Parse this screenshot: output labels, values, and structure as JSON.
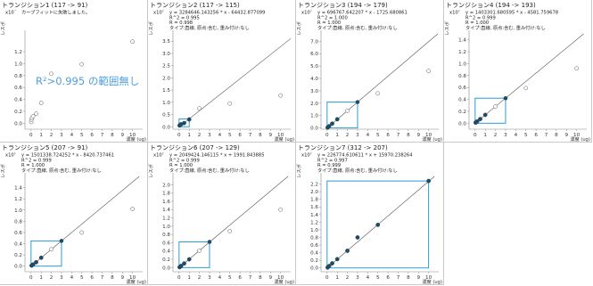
{
  "chart_data": [
    {
      "type": "scatter",
      "title": "トランジション1 (117 -> 91)",
      "exp": "x10´",
      "info": [
        "カーブフィットに失敗しました。"
      ],
      "note": "R²>0.995 の範囲無し",
      "ylabel": "レスポ",
      "xlabel": "濃度 (ug)",
      "xlim": [
        -0.6,
        11
      ],
      "ylim": [
        -0.1,
        1.5
      ],
      "xticks": [
        0,
        1,
        2,
        3,
        4,
        5,
        6,
        7,
        8,
        9,
        10
      ],
      "yticks": [
        "0.0",
        "0.2",
        "0.4",
        "0.6",
        "0.8",
        "1.0",
        "1.2"
      ],
      "points": [
        [
          0.02,
          0.02
        ],
        [
          0.05,
          0.06
        ],
        [
          0.1,
          0.09
        ],
        [
          0.2,
          0.12
        ],
        [
          0.5,
          0.16
        ],
        [
          1,
          0.34
        ],
        [
          2,
          0.83
        ],
        [
          5,
          0.99
        ],
        [
          10,
          1.37
        ]
      ],
      "highlight": [],
      "fit_line": null,
      "box": null
    },
    {
      "type": "scatter",
      "title": "トランジション2 (117 -> 115)",
      "exp": "x10⁷",
      "info": [
        "y = 3284646.143256 * x - 64432.877099",
        "R^2 = 0.995",
        "R = 0.998",
        "タイプ:直線, 原点:含む, 重み付け:なし"
      ],
      "note": "",
      "ylabel": "レスポ",
      "xlabel": "濃度 (ug)",
      "xlim": [
        -0.6,
        11
      ],
      "ylim": [
        -0.1,
        3.8
      ],
      "xticks": [
        0,
        1,
        2,
        3,
        4,
        5,
        6,
        7,
        8,
        9,
        10
      ],
      "yticks": [
        "0.0",
        "0.5",
        "1.0",
        "1.5",
        "2.0",
        "2.5",
        "3.0",
        "3.5"
      ],
      "points": [
        [
          0.05,
          0.05
        ],
        [
          0.1,
          0.08
        ],
        [
          0.2,
          0.1
        ],
        [
          0.5,
          0.15
        ],
        [
          1,
          0.3
        ],
        [
          2,
          0.75
        ],
        [
          5,
          0.95
        ],
        [
          10,
          1.28
        ]
      ],
      "highlight": [
        [
          0.05,
          0.05
        ],
        [
          0.1,
          0.08
        ],
        [
          0.2,
          0.1
        ],
        [
          0.5,
          0.15
        ],
        [
          1,
          0.3
        ]
      ],
      "fit_line": {
        "slope": 0.3284646,
        "intercept": -0.0064433
      },
      "box": {
        "x": [
          0,
          1
        ],
        "y": [
          0,
          0.32
        ]
      }
    },
    {
      "type": "scatter",
      "title": "トランジション3 (194 -> 179)",
      "exp": "x10⁷",
      "info": [
        "y = 696767.642207 * x - 1725.680861",
        "R^2 = 1.000",
        "R = 1.000",
        "タイプ:直線, 原点:含む, 重み付け:なし"
      ],
      "note": "",
      "ylabel": "レスポ",
      "xlabel": "濃度 (ug)",
      "xlim": [
        -0.6,
        11
      ],
      "ylim": [
        -0.1,
        7.6
      ],
      "xticks": [
        0,
        1,
        2,
        3,
        4,
        5,
        6,
        7,
        8,
        9,
        10
      ],
      "yticks": [
        "0.0",
        "1.0",
        "2.0",
        "3.0",
        "4.0",
        "5.0",
        "6.0",
        "7.0"
      ],
      "points": [
        [
          0.05,
          0.03
        ],
        [
          0.1,
          0.07
        ],
        [
          0.2,
          0.14
        ],
        [
          0.5,
          0.35
        ],
        [
          1,
          0.7
        ],
        [
          2,
          1.39
        ],
        [
          5,
          2.79
        ],
        [
          10,
          4.6
        ]
      ],
      "highlight": [
        [
          0.05,
          0.03
        ],
        [
          0.1,
          0.07
        ],
        [
          0.2,
          0.14
        ],
        [
          0.5,
          0.35
        ],
        [
          1,
          0.7
        ],
        [
          3,
          2.09
        ]
      ],
      "fit_line": {
        "slope": 0.6967676,
        "intercept": -0.0001726
      },
      "box": {
        "x": [
          0,
          3
        ],
        "y": [
          0,
          2.09
        ]
      }
    },
    {
      "type": "scatter",
      "title": "トランジション4 (194 -> 193)",
      "exp": "x10⁷",
      "info": [
        "y = 1403301.680595 * x - 4581.759678",
        "R^2 = 0.999",
        "R = 1.000",
        "タイプ:直線, 原点:含む, 重み付け:なし"
      ],
      "note": "",
      "ylabel": "レスポ",
      "xlabel": "濃度 (ug)",
      "xlim": [
        -0.6,
        11
      ],
      "ylim": [
        -0.1,
        1.5
      ],
      "xticks": [
        0,
        1,
        2,
        3,
        4,
        5,
        6,
        7,
        8,
        9,
        10
      ],
      "yticks": [
        "0.0",
        "0.2",
        "0.4",
        "0.6",
        "0.8",
        "1.0",
        "1.2",
        "1.4"
      ],
      "points": [
        [
          0.05,
          0.01
        ],
        [
          0.1,
          0.02
        ],
        [
          0.2,
          0.03
        ],
        [
          0.5,
          0.07
        ],
        [
          1,
          0.14
        ],
        [
          2,
          0.28
        ],
        [
          5,
          0.59
        ],
        [
          10,
          0.92
        ]
      ],
      "highlight": [
        [
          0.05,
          0.01
        ],
        [
          0.1,
          0.02
        ],
        [
          0.2,
          0.03
        ],
        [
          0.5,
          0.07
        ],
        [
          1,
          0.14
        ],
        [
          3,
          0.42
        ]
      ],
      "fit_line": {
        "slope": 0.1403302,
        "intercept": -0.0004582
      },
      "box": {
        "x": [
          0,
          3
        ],
        "y": [
          0,
          0.42
        ]
      }
    },
    {
      "type": "scatter",
      "title": "トランジション5 (207 -> 91)",
      "exp": "x10⁷",
      "info": [
        "y = 1501338.724252 * x - 8420.737461",
        "R^2 = 0.999",
        "R = 1.000",
        "タイプ:直線, 原点:含む, 重み付け:なし"
      ],
      "note": "",
      "ylabel": "レスポ",
      "xlabel": "濃度 (ug)",
      "xlim": [
        -0.6,
        11
      ],
      "ylim": [
        -0.1,
        1.6
      ],
      "xticks": [
        0,
        1,
        2,
        3,
        4,
        5,
        6,
        7,
        8,
        9,
        10
      ],
      "yticks": [
        "0.0",
        "0.2",
        "0.4",
        "0.6",
        "0.8",
        "1.0",
        "1.2",
        "1.4"
      ],
      "points": [
        [
          0.05,
          0.01
        ],
        [
          0.1,
          0.02
        ],
        [
          0.2,
          0.03
        ],
        [
          0.5,
          0.07
        ],
        [
          1,
          0.15
        ],
        [
          2,
          0.3
        ],
        [
          5,
          0.6
        ],
        [
          10,
          1.02
        ]
      ],
      "highlight": [
        [
          0.05,
          0.01
        ],
        [
          0.1,
          0.02
        ],
        [
          0.2,
          0.03
        ],
        [
          0.5,
          0.07
        ],
        [
          1,
          0.15
        ],
        [
          3,
          0.45
        ]
      ],
      "fit_line": {
        "slope": 0.1501339,
        "intercept": -0.0008421
      },
      "box": {
        "x": [
          0,
          3
        ],
        "y": [
          0,
          0.45
        ]
      }
    },
    {
      "type": "scatter",
      "title": "トランジション6 (207 -> 129)",
      "exp": "x10⁷",
      "info": [
        "y = 2049424.146115 * x + 1991.843885",
        "R^2 = 0.999",
        "R = 1.000",
        "タイプ:直線, 原点:含む, 重み付け:なし"
      ],
      "note": "",
      "ylabel": "レスポ",
      "xlabel": "濃度 (ug)",
      "xlim": [
        -0.6,
        11
      ],
      "ylim": [
        -0.1,
        2.2
      ],
      "xticks": [
        0,
        1,
        2,
        3,
        4,
        5,
        6,
        7,
        8,
        9,
        10
      ],
      "yticks": [
        "0.0",
        "0.2",
        "0.4",
        "0.6",
        "0.8",
        "1.0",
        "1.2",
        "1.4",
        "1.6",
        "1.8",
        "2.0"
      ],
      "points": [
        [
          0.05,
          0.01
        ],
        [
          0.1,
          0.02
        ],
        [
          0.2,
          0.04
        ],
        [
          0.5,
          0.1
        ],
        [
          1,
          0.2
        ],
        [
          2,
          0.41
        ],
        [
          5,
          0.88
        ],
        [
          10,
          1.4
        ]
      ],
      "highlight": [
        [
          0.05,
          0.01
        ],
        [
          0.1,
          0.02
        ],
        [
          0.2,
          0.04
        ],
        [
          0.5,
          0.1
        ],
        [
          1,
          0.2
        ],
        [
          3,
          0.62
        ]
      ],
      "fit_line": {
        "slope": 0.2049424,
        "intercept": 0.0001992
      },
      "box": {
        "x": [
          0,
          3
        ],
        "y": [
          0,
          0.62
        ]
      }
    },
    {
      "type": "scatter",
      "title": "トランジション7 (312 -> 207)",
      "exp": "x10⁷",
      "info": [
        "y = 226774.610611 * x + 15970.238264",
        "R^2 = 0.997",
        "R = 0.999",
        "タイプ:直線, 原点:含む, 重み付け:なし"
      ],
      "note": "",
      "ylabel": "レスポ",
      "xlabel": "濃度 (ug)",
      "xlim": [
        -0.6,
        11
      ],
      "ylim": [
        -0.1,
        2.4
      ],
      "xticks": [
        0,
        1,
        2,
        3,
        4,
        5,
        6,
        7,
        8,
        9,
        10
      ],
      "yticks": [
        "0.0",
        "0.2",
        "0.4",
        "0.6",
        "0.8",
        "1.0",
        "1.2",
        "1.4",
        "1.6",
        "1.8",
        "2.0",
        "2.2"
      ],
      "points": [
        [
          0.05,
          0.01
        ],
        [
          0.1,
          0.03
        ],
        [
          0.2,
          0.05
        ],
        [
          0.5,
          0.12
        ],
        [
          1,
          0.23
        ],
        [
          2,
          0.45
        ],
        [
          3,
          0.8
        ],
        [
          5,
          1.13
        ],
        [
          10,
          2.28
        ]
      ],
      "highlight": [
        [
          0.05,
          0.01
        ],
        [
          0.1,
          0.03
        ],
        [
          0.2,
          0.05
        ],
        [
          0.5,
          0.12
        ],
        [
          1,
          0.23
        ],
        [
          2,
          0.45
        ],
        [
          3,
          0.8
        ],
        [
          5,
          1.13
        ],
        [
          10,
          2.28
        ]
      ],
      "fit_line": {
        "slope": 0.2267746,
        "intercept": 0.001597
      },
      "box": {
        "x": [
          0,
          10
        ],
        "y": [
          0,
          2.28
        ]
      }
    }
  ]
}
